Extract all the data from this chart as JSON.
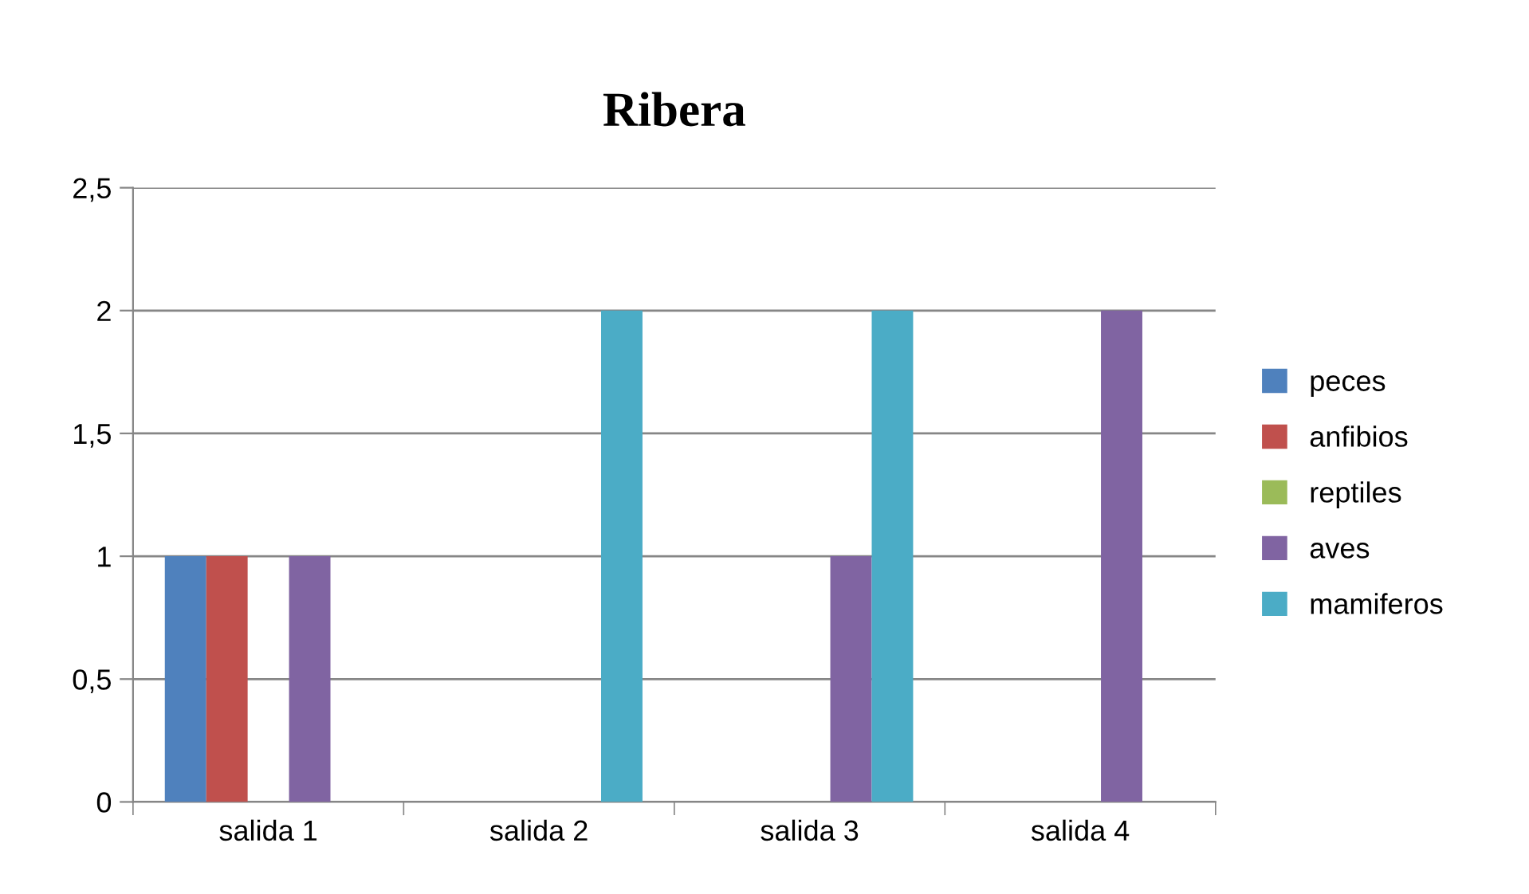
{
  "chart_data": {
    "type": "bar",
    "title": "Ribera",
    "categories": [
      "salida 1",
      "salida 2",
      "salida 3",
      "salida 4"
    ],
    "series": [
      {
        "name": "peces",
        "color": "#4f81bd",
        "values": [
          1,
          0,
          0,
          0
        ]
      },
      {
        "name": "anfibios",
        "color": "#c0504d",
        "values": [
          1,
          0,
          0,
          0
        ]
      },
      {
        "name": "reptiles",
        "color": "#9bbb59",
        "values": [
          0,
          0,
          0,
          0
        ]
      },
      {
        "name": "aves",
        "color": "#8064a2",
        "values": [
          1,
          0,
          1,
          2
        ]
      },
      {
        "name": "mamiferos",
        "color": "#4bacc6",
        "values": [
          0,
          2,
          2,
          0
        ]
      }
    ],
    "ylim": [
      0,
      2.5
    ],
    "yticks": [
      0,
      {
        "value": 0.5,
        "label": "0,5"
      },
      1,
      {
        "value": 1.5,
        "label": "1,5"
      },
      2,
      {
        "value": 2.5,
        "label": "2,5"
      }
    ],
    "grid": "y",
    "legend": "right"
  }
}
